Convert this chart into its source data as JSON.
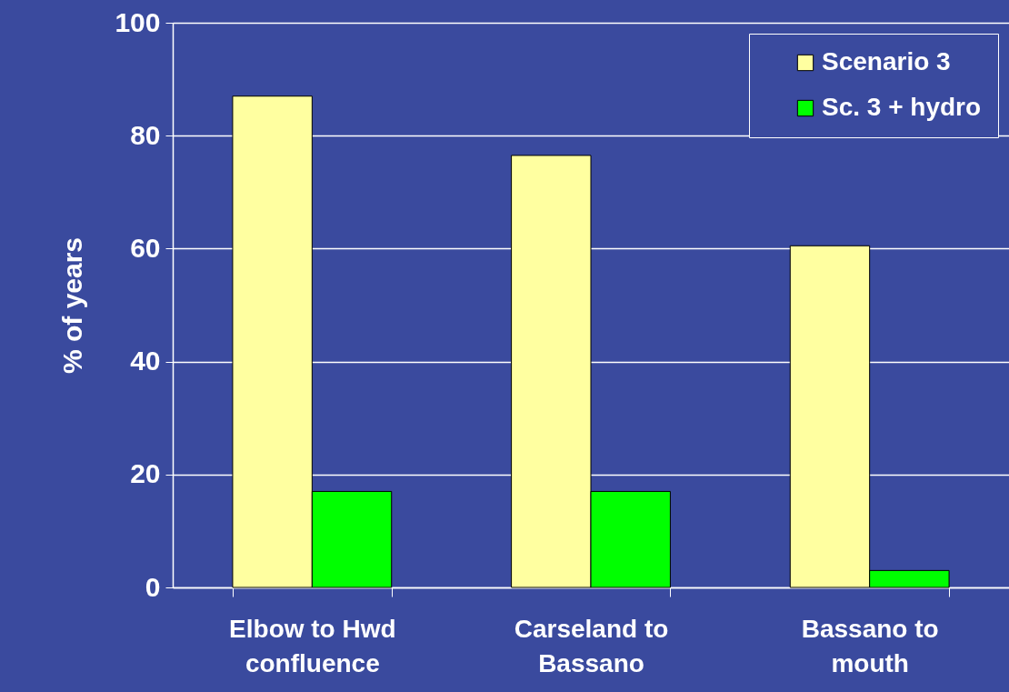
{
  "chart_data": {
    "type": "bar",
    "ylabel": "% of years",
    "categories": [
      "Elbow to Hwd confluence",
      "Carseland to Bassano",
      "Bassano to mouth"
    ],
    "series": [
      {
        "name": "Scenario 3",
        "color": "#ffffa0",
        "values": [
          87,
          76.5,
          60.5
        ]
      },
      {
        "name": "Sc. 3 + hydro",
        "color": "#00ff00",
        "values": [
          17,
          17,
          3
        ]
      }
    ],
    "ylim": [
      0,
      100
    ],
    "yticks": [
      0,
      20,
      40,
      60,
      80,
      100
    ],
    "grid": "y",
    "legend": "top right"
  }
}
